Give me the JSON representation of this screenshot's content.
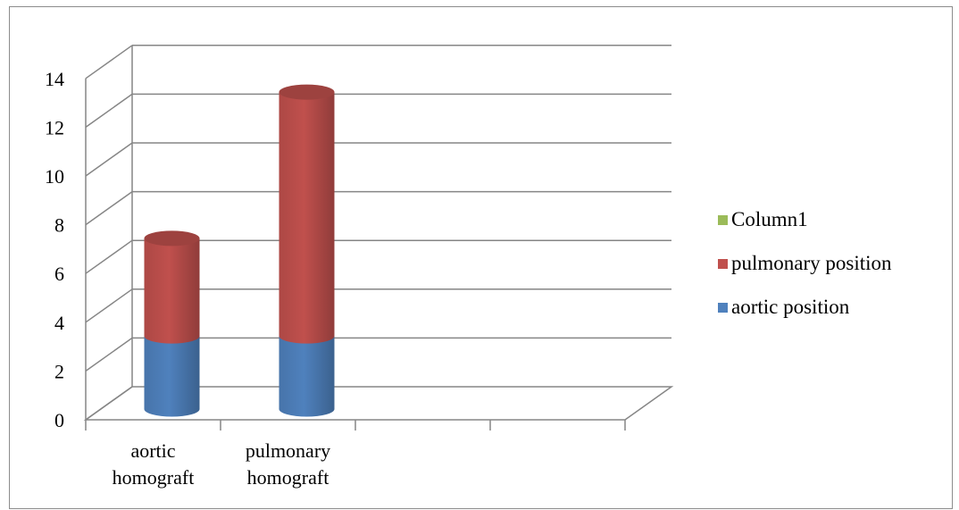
{
  "chart_data": {
    "type": "bar",
    "stacked": true,
    "style": "3d-cylinder",
    "categories": [
      [
        "aortic",
        "homograft"
      ],
      [
        "pulmonary",
        "homograft"
      ],
      [],
      []
    ],
    "series": [
      {
        "name": "aortic position",
        "color": "#4f81bd",
        "values": [
          3,
          3,
          null,
          null
        ]
      },
      {
        "name": "pulmonary position",
        "color": "#c0504d",
        "values": [
          4,
          10,
          null,
          null
        ]
      },
      {
        "name": "Column1",
        "color": "#9bbb59",
        "values": [
          null,
          null,
          null,
          null
        ]
      }
    ],
    "ylim": [
      0,
      14
    ],
    "yticks": [
      0,
      2,
      4,
      6,
      8,
      10,
      12,
      14
    ],
    "grid": true,
    "legend_position": "right"
  }
}
